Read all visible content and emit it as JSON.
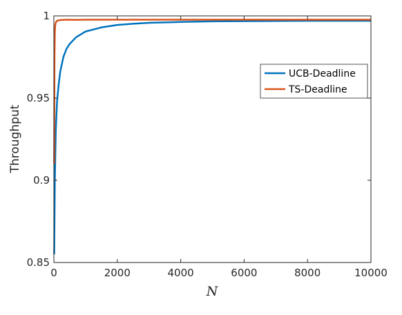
{
  "chart_data": {
    "type": "line",
    "title": "",
    "xlabel": "N",
    "ylabel": "Throughput",
    "xlim": [
      0,
      10000
    ],
    "ylim": [
      0.85,
      1.0
    ],
    "xticks": [
      0,
      2000,
      4000,
      6000,
      8000,
      10000
    ],
    "xtick_labels": [
      "0",
      "2000",
      "4000",
      "6000",
      "8000",
      "10000"
    ],
    "yticks": [
      0.85,
      0.9,
      0.95,
      1.0
    ],
    "ytick_labels": [
      "0.85",
      "0.9",
      "0.95",
      "1"
    ],
    "grid": false,
    "legend_position": "upper-right",
    "series": [
      {
        "name": "UCB-Deadline",
        "color": "#0072BD",
        "x": [
          10,
          30,
          60,
          100,
          150,
          200,
          300,
          400,
          500,
          700,
          1000,
          1500,
          2000,
          2500,
          3000,
          4000,
          5000,
          6000,
          7000,
          8000,
          9000,
          10000
        ],
        "y": [
          0.855,
          0.9,
          0.93,
          0.948,
          0.958,
          0.966,
          0.975,
          0.98,
          0.983,
          0.987,
          0.9905,
          0.993,
          0.9945,
          0.9952,
          0.9958,
          0.9963,
          0.9967,
          0.9968,
          0.9969,
          0.997,
          0.997,
          0.997
        ]
      },
      {
        "name": "TS-Deadline",
        "color": "#D95319",
        "x": [
          10,
          20,
          30,
          40,
          60,
          100,
          200,
          400,
          700,
          1000,
          2000,
          4000,
          6000,
          8000,
          10000
        ],
        "y": [
          0.91,
          0.975,
          0.99,
          0.994,
          0.996,
          0.997,
          0.9975,
          0.9977,
          0.9976,
          0.9977,
          0.9977,
          0.9977,
          0.9977,
          0.9977,
          0.9977
        ]
      }
    ]
  }
}
